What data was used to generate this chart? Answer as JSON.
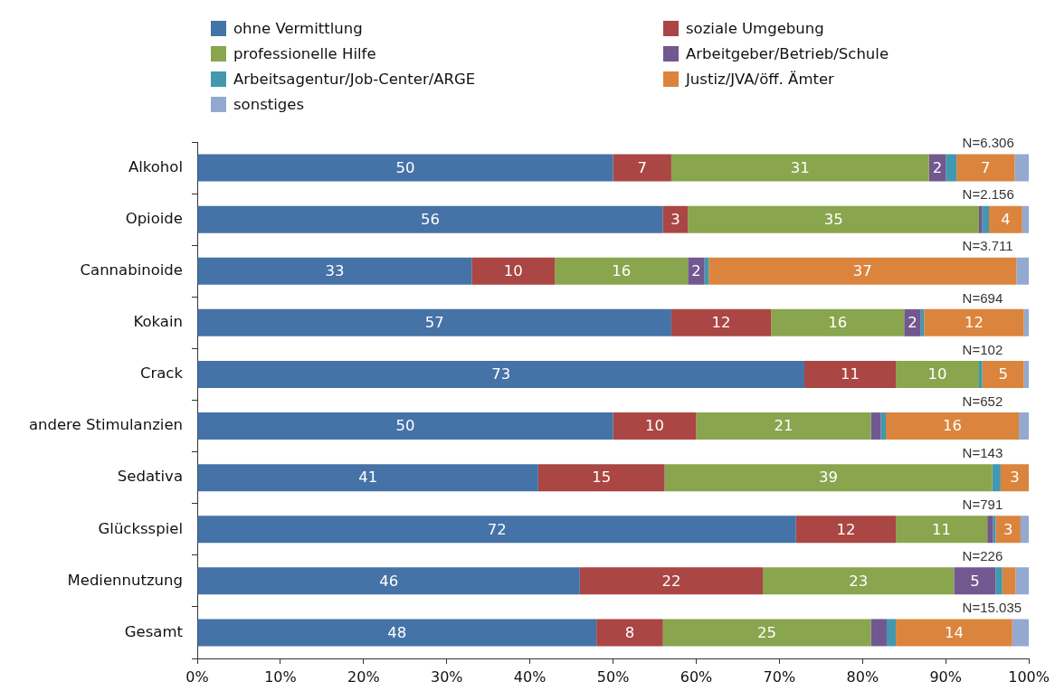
{
  "chart_data": {
    "type": "bar",
    "orientation": "horizontal",
    "stacked": true,
    "legend": "top",
    "categories": [
      "Alkohol",
      "Opioide",
      "Cannabinoide",
      "Kokain",
      "Crack",
      "andere Stimulanzien",
      "Sedativa",
      "Glücksspiel",
      "Mediennutzung",
      "Gesamt"
    ],
    "series": [
      {
        "name": "ohne Vermittlung",
        "color": "#4572a7",
        "values": [
          50,
          56,
          33,
          57,
          73,
          50,
          41,
          72,
          46,
          48
        ],
        "value_labels": [
          "50",
          "56",
          "33",
          "57",
          "73",
          "50",
          "41",
          "72",
          "46",
          "48"
        ]
      },
      {
        "name": "soziale Umgebung",
        "color": "#aa4643",
        "values": [
          7,
          3,
          10,
          12,
          11,
          10,
          15.2,
          12,
          22,
          8
        ],
        "value_labels": [
          "7",
          "3",
          "10",
          "12",
          "11",
          "10",
          "15",
          "12",
          "22",
          "8"
        ]
      },
      {
        "name": "professionelle Hilfe",
        "color": "#89a54e",
        "values": [
          31,
          35,
          16,
          16,
          10,
          21,
          39.4,
          11,
          23,
          25
        ],
        "value_labels": [
          "31",
          "35",
          "16",
          "16",
          "10",
          "21",
          "39",
          "11",
          "23",
          "25"
        ]
      },
      {
        "name": "Arbeitgeber/Betrieb/Schule",
        "color": "#71588f",
        "values": [
          2,
          0.4,
          2,
          2,
          0,
          1.2,
          0,
          0.7,
          5,
          1.9
        ],
        "value_labels": [
          "2",
          null,
          "2",
          "2",
          null,
          null,
          null,
          null,
          "5",
          null
        ]
      },
      {
        "name": "Arbeitsagentur/Job-Center/ARGE",
        "color": "#4198af",
        "values": [
          1.3,
          0.8,
          0.5,
          0.4,
          0.4,
          0.6,
          1,
          0.3,
          0.8,
          1.1
        ]
      },
      {
        "name": "Justiz/JVA/öff. Ämter",
        "color": "#db843d",
        "values": [
          7,
          4,
          37,
          12,
          5,
          16,
          3.4,
          3,
          1.6,
          14
        ],
        "value_labels": [
          "7",
          "4",
          "37",
          "12",
          "5",
          "16",
          "3",
          "3",
          null,
          "14"
        ]
      },
      {
        "name": "sonstiges",
        "color": "#93a9cf",
        "values": [
          1.7,
          0.8,
          1.5,
          0.6,
          0.6,
          1.2,
          0,
          1,
          1.6,
          2
        ]
      }
    ],
    "xlim": [
      0,
      100
    ],
    "xticks": [
      {
        "value": 0,
        "label": "0%"
      },
      {
        "value": 10,
        "label": "10%"
      },
      {
        "value": 20,
        "label": "20%"
      },
      {
        "value": 30,
        "label": "30%"
      },
      {
        "value": 40,
        "label": "40%"
      },
      {
        "value": 50,
        "label": "50%"
      },
      {
        "value": 60,
        "label": "60%"
      },
      {
        "value": 70,
        "label": "70%"
      },
      {
        "value": 80,
        "label": "80%"
      },
      {
        "value": 90,
        "label": "90%"
      },
      {
        "value": 100,
        "label": "100%"
      }
    ],
    "annotations": [
      "N=6.306",
      "N=2.156",
      "N=3.711",
      "N=694",
      "N=102",
      "N=652",
      "N=143",
      "N=791",
      "N=226",
      "N=15.035"
    ]
  }
}
